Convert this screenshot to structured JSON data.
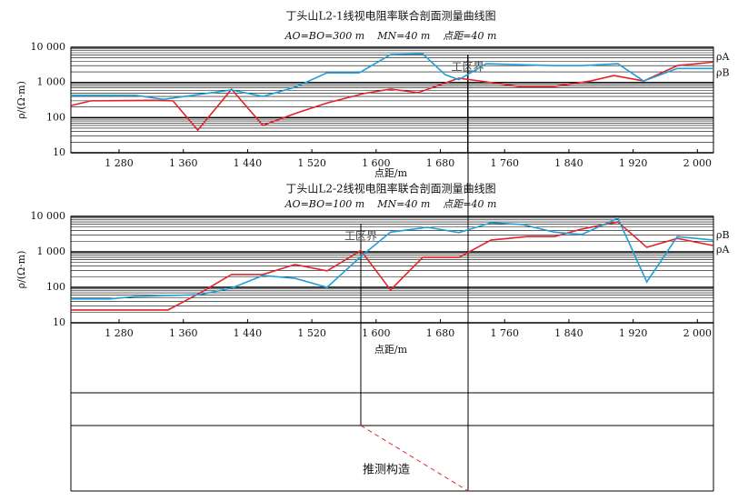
{
  "chart_data": [
    {
      "type": "line",
      "title": "丁头山L2-1线视电阻率联合剖面测量曲线图",
      "subtitle": "AO=BO=300 m    MN=40 m    点距=40 m",
      "xlabel": "点距/m",
      "ylabel": "ρ/(Ω·m)",
      "log_y": true,
      "grid": true,
      "minor_grid": true,
      "xlim": [
        1220,
        2020
      ],
      "xticks": [
        {
          "value": 1280,
          "label": "1 280"
        },
        {
          "value": 1360,
          "label": "1 360"
        },
        {
          "value": 1440,
          "label": "1 440"
        },
        {
          "value": 1520,
          "label": "1 520"
        },
        {
          "value": 1600,
          "label": "1 600"
        },
        {
          "value": 1680,
          "label": "1 680"
        },
        {
          "value": 1760,
          "label": "1 760"
        },
        {
          "value": 1840,
          "label": "1 840"
        },
        {
          "value": 1920,
          "label": "1 920"
        },
        {
          "value": 2000,
          "label": "2 000"
        }
      ],
      "ylim": [
        10,
        10000
      ],
      "yticks": [
        10,
        100,
        {
          "value": 1000,
          "label": "1 000"
        },
        {
          "value": 10000,
          "label": "10 000"
        }
      ],
      "annotations": [
        {
          "text": "工区界",
          "x": 1714
        }
      ],
      "series": [
        {
          "name": "ρA",
          "color": "#e3232b",
          "x": [
            1220,
            1245,
            1324,
            1347,
            1378,
            1420,
            1459,
            1499,
            1539,
            1584,
            1618,
            1652,
            1703,
            1737,
            1777,
            1822,
            1867,
            1896,
            1933,
            1975,
            2020
          ],
          "values": [
            220,
            300,
            310,
            300,
            44,
            640,
            60,
            130,
            260,
            480,
            650,
            510,
            1320,
            1040,
            770,
            770,
            1100,
            1570,
            1100,
            3000,
            3800
          ]
        },
        {
          "name": "ρB",
          "color": "#1e9fd8",
          "x": [
            1220,
            1301,
            1335,
            1378,
            1420,
            1459,
            1499,
            1539,
            1579,
            1618,
            1658,
            1686,
            1703,
            1737,
            1822,
            1856,
            1901,
            1933,
            1975,
            2020
          ],
          "values": [
            430,
            430,
            330,
            450,
            610,
            400,
            730,
            1880,
            1880,
            6200,
            6500,
            1660,
            1200,
            3400,
            3000,
            3000,
            3400,
            1100,
            2500,
            2500
          ]
        }
      ]
    },
    {
      "type": "line",
      "title": "丁头山L2-2线视电阻率联合剖面测量曲线图",
      "subtitle": "AO=BO=100 m    MN=40 m    点距=40 m",
      "xlabel": "点距/m",
      "ylabel": "ρ/(Ω·m)",
      "log_y": true,
      "grid": true,
      "minor_grid": true,
      "xlim": [
        1220,
        2020
      ],
      "xticks": [
        {
          "value": 1280,
          "label": "1 280"
        },
        {
          "value": 1360,
          "label": "1 360"
        },
        {
          "value": 1440,
          "label": "1 440"
        },
        {
          "value": 1520,
          "label": "1 520"
        },
        {
          "value": 1600,
          "label": "1 600"
        },
        {
          "value": 1680,
          "label": "1 680"
        },
        {
          "value": 1760,
          "label": "1 760"
        },
        {
          "value": 1840,
          "label": "1 840"
        },
        {
          "value": 1920,
          "label": "1 920"
        },
        {
          "value": 2000,
          "label": "2 000"
        }
      ],
      "ylim": [
        10,
        10000
      ],
      "yticks": [
        10,
        100,
        {
          "value": 1000,
          "label": "1 000"
        },
        {
          "value": 10000,
          "label": "10 000"
        }
      ],
      "annotations": [
        {
          "text": "工区界",
          "x": 1581
        }
      ],
      "series": [
        {
          "name": "ρA",
          "color": "#e3232b",
          "x": [
            1220,
            1341,
            1381,
            1420,
            1459,
            1499,
            1539,
            1581,
            1618,
            1658,
            1703,
            1743,
            1788,
            1822,
            1856,
            1901,
            1937,
            1975,
            2020
          ],
          "values": [
            23,
            23,
            70,
            230,
            230,
            440,
            290,
            1100,
            84,
            700,
            700,
            2150,
            2700,
            2700,
            4400,
            7000,
            1340,
            2400,
            1500
          ]
        },
        {
          "name": "ρB",
          "color": "#1e9fd8",
          "x": [
            1220,
            1268,
            1301,
            1381,
            1420,
            1459,
            1499,
            1539,
            1581,
            1618,
            1664,
            1703,
            1743,
            1782,
            1822,
            1856,
            1901,
            1937,
            1975,
            2020
          ],
          "values": [
            47,
            47,
            55,
            62,
            95,
            215,
            180,
            100,
            740,
            3600,
            4950,
            3500,
            6600,
            5900,
            3600,
            3100,
            8900,
            142,
            2700,
            2150
          ]
        }
      ]
    }
  ],
  "section": {
    "label": "推测构造"
  }
}
